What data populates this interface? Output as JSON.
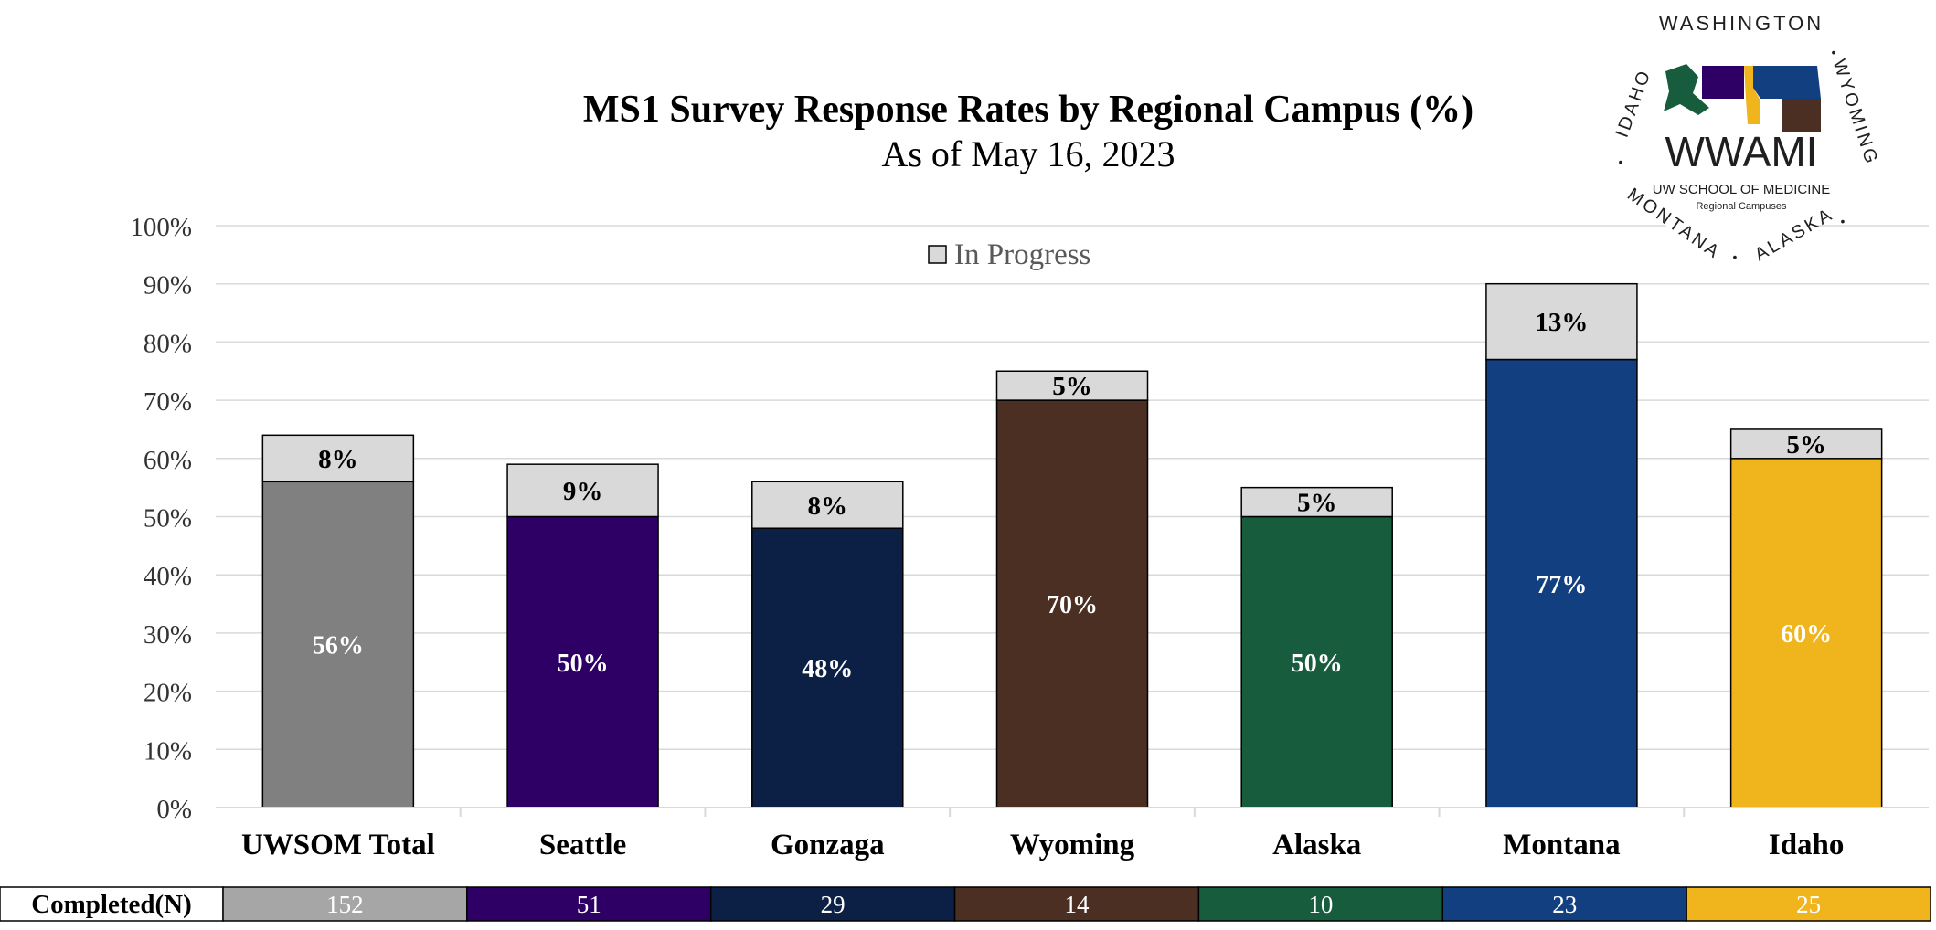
{
  "chart_data": {
    "type": "bar",
    "stacked": true,
    "title": "MS1 Survey Response Rates by Regional Campus (%)",
    "subtitle": "As of May 16, 2023",
    "categories": [
      "UWSOM Total",
      "Seattle",
      "Gonzaga",
      "Wyoming",
      "Alaska",
      "Montana",
      "Idaho"
    ],
    "series": [
      {
        "values": [
          56,
          50,
          48,
          70,
          50,
          77,
          60
        ],
        "labels": [
          "56%",
          "50%",
          "48%",
          "70%",
          "50%",
          "77%",
          "60%"
        ]
      },
      {
        "name": "In Progress",
        "values": [
          8,
          9,
          8,
          5,
          5,
          13,
          5
        ],
        "labels": [
          "8%",
          "9%",
          "8%",
          "5%",
          "5%",
          "13%",
          "5%"
        ]
      }
    ],
    "colors": [
      "#808080",
      "#2e0066",
      "#0c1f44",
      "#4a2f22",
      "#185c3e",
      "#123f80",
      "#f0b41c"
    ],
    "in_progress_color": "#d9d9d9",
    "ylim": [
      0,
      100
    ],
    "yticks": [
      "0%",
      "10%",
      "20%",
      "30%",
      "40%",
      "50%",
      "60%",
      "70%",
      "80%",
      "90%",
      "100%"
    ],
    "grid": true,
    "legend": "top-center",
    "completed_table": {
      "header": "Completed(N)",
      "values": [
        "152",
        "51",
        "29",
        "14",
        "10",
        "23",
        "25"
      ],
      "colors": [
        "#a6a6a6",
        "#2e0066",
        "#0c1f44",
        "#4a2f22",
        "#185c3e",
        "#123f80",
        "#f0b41c"
      ]
    }
  },
  "logo": {
    "main": "WWAMI",
    "sub1": "UW SCHOOL OF MEDICINE",
    "sub2": "Regional Campuses",
    "ring_top": "WASHINGTON",
    "ring_left": "IDAHO",
    "ring_right": "WYOMING",
    "ring_bottom_left": "MONTANA",
    "ring_bottom_right": "ALASKA",
    "ring_sep": "•",
    "colors": [
      "#185c3e",
      "#2e0066",
      "#f0b41c",
      "#4a2f22",
      "#123f80"
    ]
  }
}
